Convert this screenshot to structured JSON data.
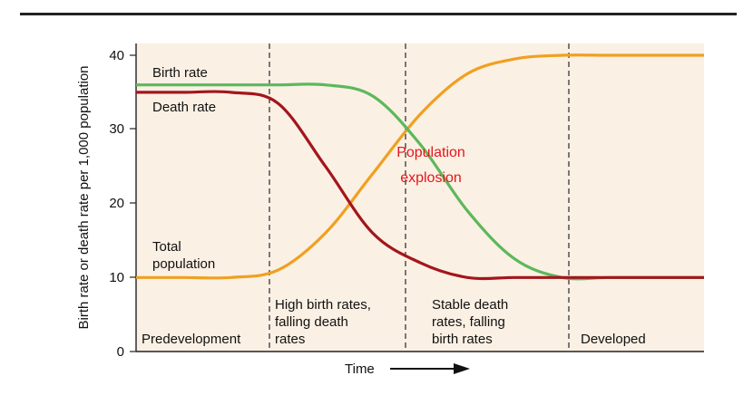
{
  "chart_data": {
    "type": "line",
    "title": "",
    "xlabel": "Time",
    "ylabel": "Birth rate or death rate per 1,000 population",
    "ylim": [
      0,
      40
    ],
    "yticks": [
      0,
      10,
      20,
      30,
      40
    ],
    "grid": false,
    "legend": "none",
    "phases": [
      "Predevelopment",
      "High birth rates, falling death rates",
      "Stable death rates, falling birth rates",
      "Developed"
    ],
    "series": [
      {
        "name": "Birth rate",
        "color": "#5cb85c",
        "values": [
          36,
          36,
          36,
          36,
          36,
          34.5,
          28,
          19,
          12.5,
          10,
          10,
          10,
          10
        ]
      },
      {
        "name": "Death rate",
        "color": "#a3161c",
        "values": [
          35,
          35,
          35,
          33.5,
          25,
          16,
          12,
          10,
          10,
          10,
          10,
          10,
          10
        ]
      },
      {
        "name": "Total population",
        "color": "#f0a020",
        "values": [
          10,
          10,
          10,
          11,
          16,
          24,
          32,
          37.5,
          39.5,
          40,
          40,
          40,
          40
        ]
      }
    ],
    "annotations": [
      {
        "text": "Population explosion",
        "color": "#e4161c"
      }
    ]
  },
  "labels": {
    "birth_rate": "Birth rate",
    "death_rate": "Death rate",
    "total_population_1": "Total",
    "total_population_2": "population",
    "annot_1": "Population",
    "annot_2": "explosion",
    "phase_1": "Predevelopment",
    "phase_2_a": "High birth rates,",
    "phase_2_b": "falling death",
    "phase_2_c": "rates",
    "phase_3_a": "Stable death",
    "phase_3_b": "rates, falling",
    "phase_3_c": "birth rates",
    "phase_4": "Developed",
    "xlabel": "Time",
    "ylabel": "Birth rate or death rate per 1,000 population",
    "yticks": [
      "0",
      "10",
      "20",
      "30",
      "40"
    ]
  }
}
